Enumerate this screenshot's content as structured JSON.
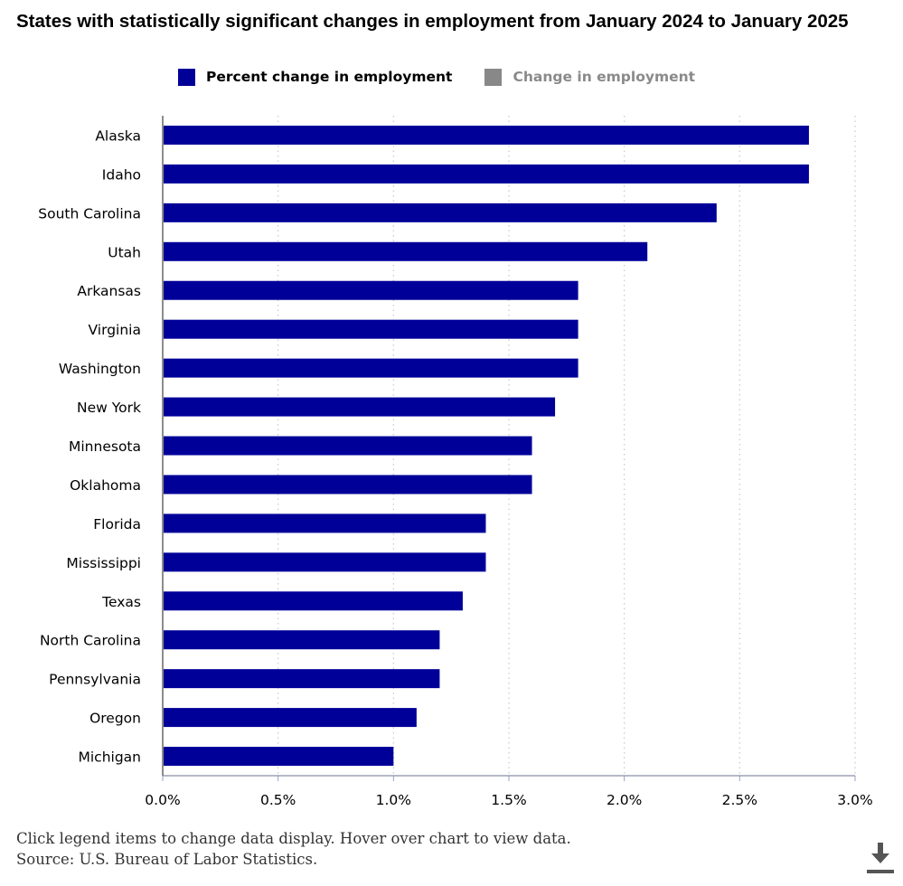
{
  "chart_data": {
    "type": "bar",
    "orientation": "horizontal",
    "title": "States with statistically significant changes in employment from January 2024 to January 2025",
    "categories": [
      "Alaska",
      "Idaho",
      "South Carolina",
      "Utah",
      "Arkansas",
      "Virginia",
      "Washington",
      "New York",
      "Minnesota",
      "Oklahoma",
      "Florida",
      "Mississippi",
      "Texas",
      "North Carolina",
      "Pennsylvania",
      "Oregon",
      "Michigan"
    ],
    "series": [
      {
        "name": "Percent change in employment",
        "values": [
          2.8,
          2.8,
          2.4,
          2.1,
          1.8,
          1.8,
          1.8,
          1.7,
          1.6,
          1.6,
          1.4,
          1.4,
          1.3,
          1.2,
          1.2,
          1.1,
          1.0
        ],
        "active": true,
        "color": "#000099"
      },
      {
        "name": "Change in employment",
        "active": false,
        "color": "#888888"
      }
    ],
    "xlim": [
      0,
      3.0
    ],
    "xticks": [
      "0.0%",
      "0.5%",
      "1.0%",
      "1.5%",
      "2.0%",
      "2.5%",
      "3.0%"
    ],
    "grid": "vertical dotted",
    "legend_position": "top"
  },
  "footer": {
    "instruction": "Click legend items to change data display. Hover over chart to view data.",
    "source": "Source: U.S. Bureau of Labor Statistics."
  },
  "icons": {
    "download": "download-icon"
  }
}
